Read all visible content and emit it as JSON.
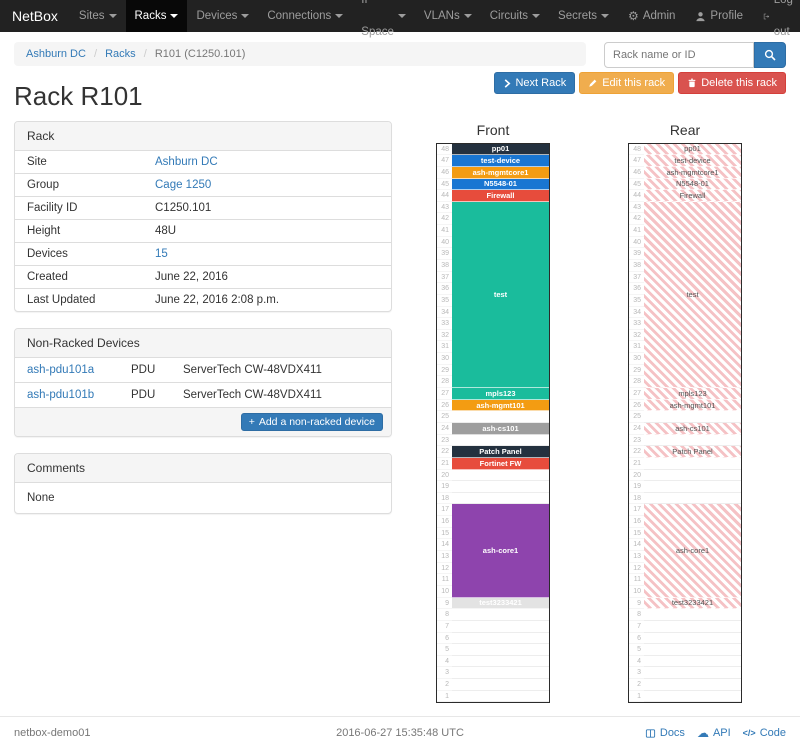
{
  "navbar": {
    "brand": "NetBox",
    "items": [
      {
        "label": "Sites"
      },
      {
        "label": "Racks",
        "active": true
      },
      {
        "label": "Devices"
      },
      {
        "label": "Connections"
      },
      {
        "label": "IP Space"
      },
      {
        "label": "VLANs"
      },
      {
        "label": "Circuits"
      },
      {
        "label": "Secrets"
      }
    ],
    "admin_label": "Admin",
    "profile_label": "Profile",
    "logout_label": "Log out"
  },
  "breadcrumb": {
    "items": [
      "Ashburn DC",
      "Racks",
      "R101 (C1250.101)"
    ]
  },
  "search": {
    "placeholder": "Rack name or ID",
    "value": ""
  },
  "actions": {
    "next_label": "Next Rack",
    "edit_label": "Edit this rack",
    "delete_label": "Delete this rack"
  },
  "page_title": "Rack R101",
  "rack_panel": {
    "title": "Rack",
    "rows": [
      {
        "label": "Site",
        "value": "Ashburn DC",
        "link": true
      },
      {
        "label": "Group",
        "value": "Cage 1250",
        "link": true
      },
      {
        "label": "Facility ID",
        "value": "C1250.101",
        "link": false
      },
      {
        "label": "Height",
        "value": "48U",
        "link": false
      },
      {
        "label": "Devices",
        "value": "15",
        "link": true
      },
      {
        "label": "Created",
        "value": "June 22, 2016",
        "link": false
      },
      {
        "label": "Last Updated",
        "value": "June 22, 2016 2:08 p.m.",
        "link": false
      }
    ]
  },
  "non_racked": {
    "title": "Non-Racked Devices",
    "rows": [
      {
        "name": "ash-pdu101a",
        "role": "PDU",
        "type": "ServerTech CW-48VDX411"
      },
      {
        "name": "ash-pdu101b",
        "role": "PDU",
        "type": "ServerTech CW-48VDX411"
      }
    ],
    "add_label": "Add a non-racked device"
  },
  "comments": {
    "title": "Comments",
    "body": "None"
  },
  "elevations": {
    "front_title": "Front",
    "rear_title": "Rear",
    "units": 48,
    "front": [
      {
        "name": "pp01",
        "unit": 48,
        "size": 1,
        "color": "#24313f"
      },
      {
        "name": "test-device",
        "unit": 47,
        "size": 1,
        "color": "#1976d2"
      },
      {
        "name": "ash-mgmtcore1",
        "unit": 46,
        "size": 1,
        "color": "#f39c12"
      },
      {
        "name": "N5548-01",
        "unit": 45,
        "size": 1,
        "color": "#1976d2"
      },
      {
        "name": "Firewall",
        "unit": 44,
        "size": 1,
        "color": "#e74c3c"
      },
      {
        "name": "test",
        "unit": 43,
        "size": 16,
        "color": "#1abc9c"
      },
      {
        "name": "mpls123",
        "unit": 27,
        "size": 1,
        "color": "#1abc9c"
      },
      {
        "name": "ash-mgmt101",
        "unit": 26,
        "size": 1,
        "color": "#f39c12"
      },
      {
        "name": "ash-cs101",
        "unit": 24,
        "size": 1,
        "color": "#9e9e9e"
      },
      {
        "name": "Patch Panel",
        "unit": 22,
        "size": 1,
        "color": "#24313f"
      },
      {
        "name": "Fortinet FW",
        "unit": 21,
        "size": 1,
        "color": "#e74c3c"
      },
      {
        "name": "ash-core1",
        "unit": 17,
        "size": 8,
        "color": "#8e44ad"
      },
      {
        "name": "test3233421",
        "unit": 9,
        "size": 1,
        "color": "#e3e3e3",
        "text": "#ffffff"
      }
    ],
    "rear": [
      {
        "name": "pp01",
        "unit": 48,
        "size": 1
      },
      {
        "name": "test-device",
        "unit": 47,
        "size": 1
      },
      {
        "name": "ash-mgmtcore1",
        "unit": 46,
        "size": 1
      },
      {
        "name": "N5548-01",
        "unit": 45,
        "size": 1
      },
      {
        "name": "Firewall",
        "unit": 44,
        "size": 1
      },
      {
        "name": "test",
        "unit": 43,
        "size": 16
      },
      {
        "name": "mpls123",
        "unit": 27,
        "size": 1
      },
      {
        "name": "ash-mgmt101",
        "unit": 26,
        "size": 1
      },
      {
        "name": "ash-cs101",
        "unit": 24,
        "size": 1
      },
      {
        "name": "Patch Panel",
        "unit": 22,
        "size": 1
      },
      {
        "name": "ash-core1",
        "unit": 17,
        "size": 8
      },
      {
        "name": "test3233421",
        "unit": 9,
        "size": 1
      }
    ]
  },
  "footer": {
    "hostname": "netbox-demo01",
    "timestamp": "2016-06-27 15:35:48 UTC",
    "links": [
      {
        "label": "Docs"
      },
      {
        "label": "API"
      },
      {
        "label": "Code"
      }
    ]
  }
}
